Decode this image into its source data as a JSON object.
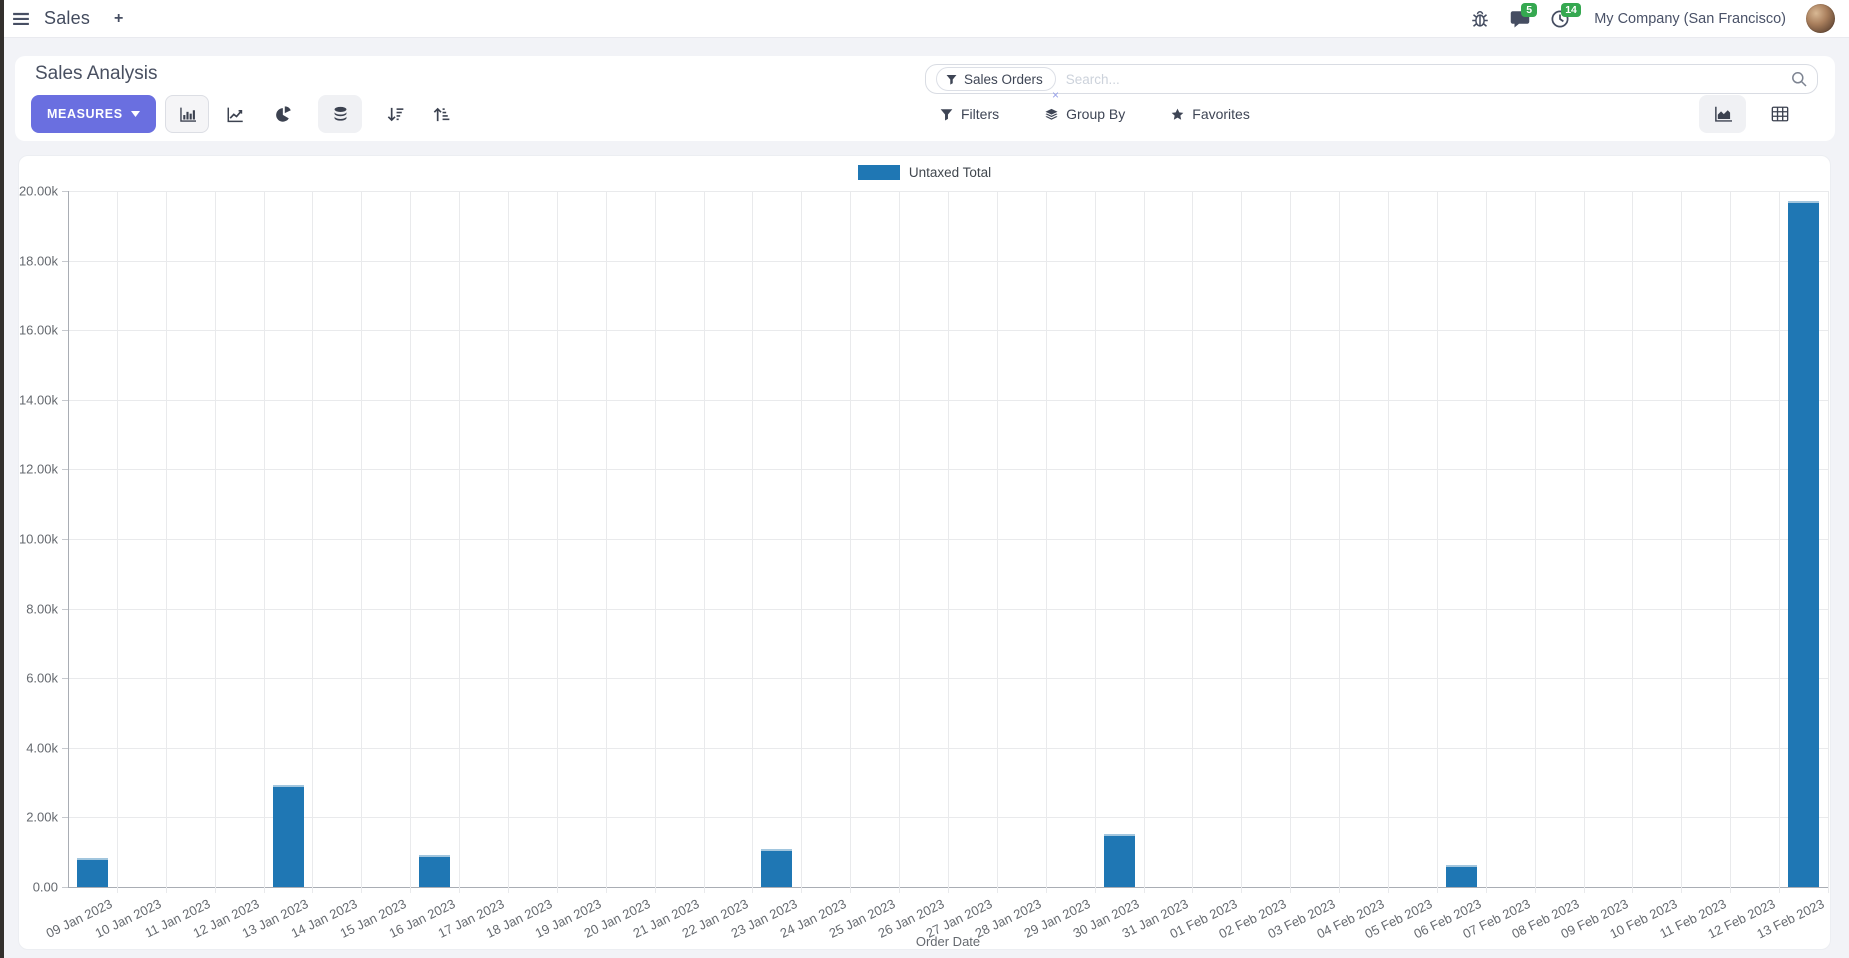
{
  "navbar": {
    "app_name": "Sales",
    "new_label": "+",
    "messages_badge": "5",
    "activities_badge": "14",
    "company": "My Company (San Francisco)"
  },
  "control_panel": {
    "title": "Sales Analysis",
    "measures_label": "MEASURES",
    "filters_label": "Filters",
    "group_by_label": "Group By",
    "favorites_label": "Favorites",
    "search": {
      "facet_label": "Sales Orders",
      "facet_remove": "×",
      "placeholder": "Search..."
    }
  },
  "chart_data": {
    "type": "bar",
    "title": "",
    "xlabel": "Order Date",
    "ylabel": "",
    "ylim": [
      0,
      20000
    ],
    "grid": true,
    "legend_position": "top",
    "y_tick_labels": [
      "0.00",
      "2.00k",
      "4.00k",
      "6.00k",
      "8.00k",
      "10.00k",
      "12.00k",
      "14.00k",
      "16.00k",
      "18.00k",
      "20.00k"
    ],
    "categories": [
      "09 Jan 2023",
      "10 Jan 2023",
      "11 Jan 2023",
      "12 Jan 2023",
      "13 Jan 2023",
      "14 Jan 2023",
      "15 Jan 2023",
      "16 Jan 2023",
      "17 Jan 2023",
      "18 Jan 2023",
      "19 Jan 2023",
      "20 Jan 2023",
      "21 Jan 2023",
      "22 Jan 2023",
      "23 Jan 2023",
      "24 Jan 2023",
      "25 Jan 2023",
      "26 Jan 2023",
      "27 Jan 2023",
      "28 Jan 2023",
      "29 Jan 2023",
      "30 Jan 2023",
      "31 Jan 2023",
      "01 Feb 2023",
      "02 Feb 2023",
      "03 Feb 2023",
      "04 Feb 2023",
      "05 Feb 2023",
      "06 Feb 2023",
      "07 Feb 2023",
      "08 Feb 2023",
      "09 Feb 2023",
      "10 Feb 2023",
      "11 Feb 2023",
      "12 Feb 2023",
      "13 Feb 2023"
    ],
    "series": [
      {
        "name": "Untaxed Total",
        "color": "#1f77b4",
        "values": [
          830,
          0,
          0,
          0,
          2930,
          0,
          0,
          930,
          0,
          0,
          0,
          0,
          0,
          0,
          1100,
          0,
          0,
          0,
          0,
          0,
          0,
          1520,
          0,
          0,
          0,
          0,
          0,
          0,
          640,
          0,
          0,
          0,
          0,
          0,
          0,
          19720
        ]
      }
    ]
  }
}
